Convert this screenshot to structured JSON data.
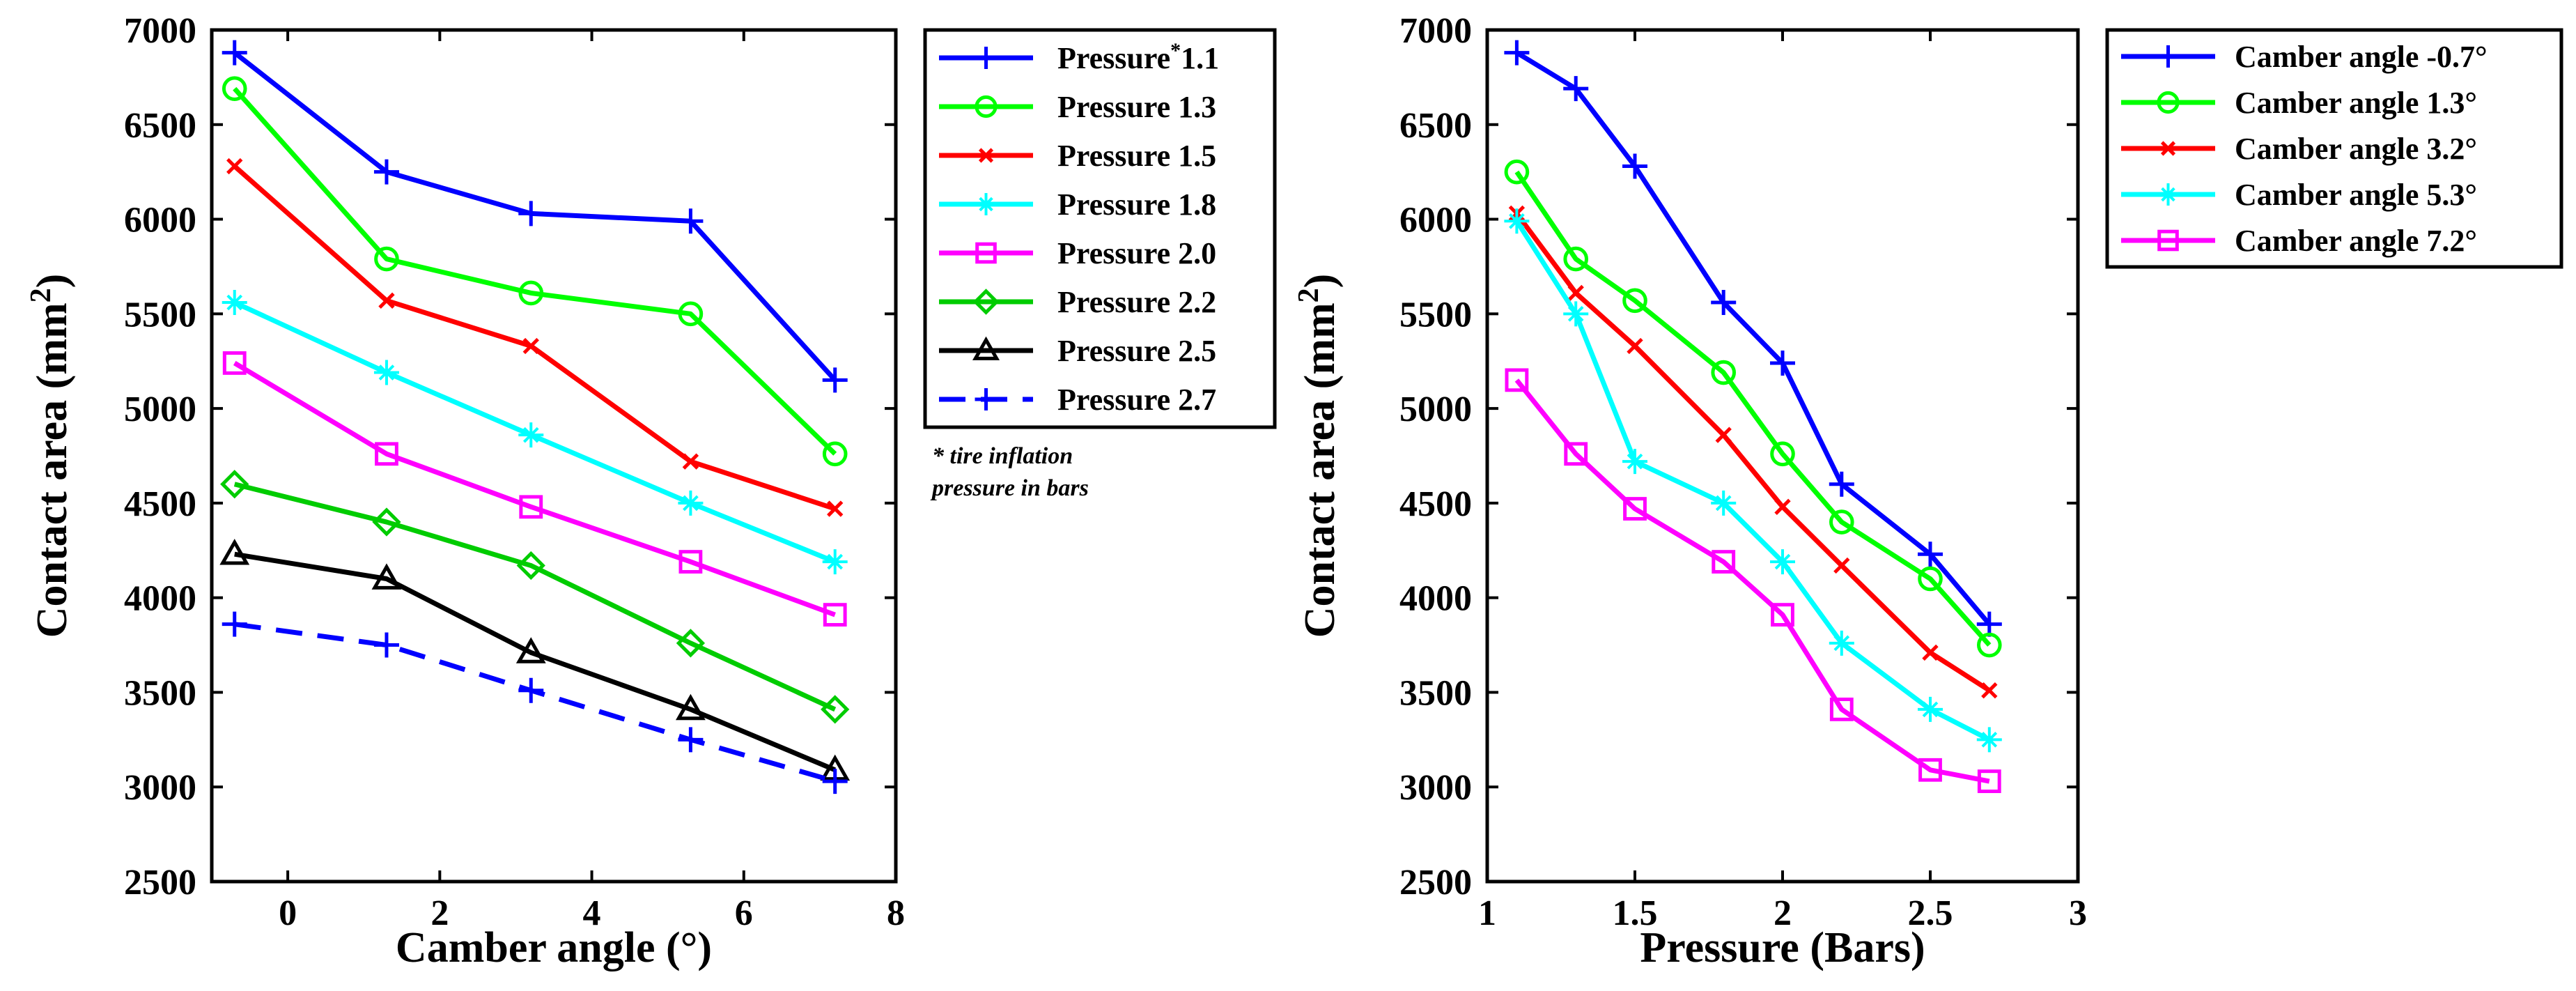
{
  "chart_data": [
    {
      "type": "line",
      "xlabel": "Camber angle (°)",
      "ylabel_prefix": "Contact area (mm",
      "ylabel_sup": "2",
      "ylabel_suffix": ")",
      "xlim": [
        -1,
        8
      ],
      "ylim": [
        2500,
        7000
      ],
      "xticks": [
        0,
        2,
        4,
        6,
        8
      ],
      "yticks": [
        2500,
        3000,
        3500,
        4000,
        4500,
        5000,
        5500,
        6000,
        6500,
        7000
      ],
      "x": [
        -0.7,
        1.3,
        3.2,
        5.3,
        7.2
      ],
      "legend_note": [
        "* tire inflation",
        "pressure in bars"
      ],
      "series": [
        {
          "name": "Pressure",
          "sup": "*",
          "name_tail": "1.1",
          "color": "#0000ff",
          "marker": "plus",
          "dash": false,
          "values": [
            6880,
            6250,
            6030,
            5990,
            5150
          ]
        },
        {
          "name": "Pressure 1.3",
          "color": "#00ff00",
          "marker": "circle",
          "dash": false,
          "values": [
            6690,
            5790,
            5610,
            5500,
            4760
          ]
        },
        {
          "name": "Pressure 1.5",
          "color": "#ff0000",
          "marker": "x",
          "dash": false,
          "values": [
            6280,
            5570,
            5330,
            4720,
            4470
          ]
        },
        {
          "name": "Pressure 1.8",
          "color": "#00ffff",
          "marker": "star",
          "dash": false,
          "values": [
            5560,
            5190,
            4860,
            4500,
            4190
          ]
        },
        {
          "name": "Pressure 2.0",
          "color": "#ff00ff",
          "marker": "square",
          "dash": false,
          "values": [
            5240,
            4760,
            4480,
            4190,
            3910
          ]
        },
        {
          "name": "Pressure 2.2",
          "color": "#00cc00",
          "marker": "diamond",
          "dash": false,
          "values": [
            4600,
            4400,
            4170,
            3760,
            3410
          ]
        },
        {
          "name": "Pressure 2.5",
          "color": "#000000",
          "marker": "triangle",
          "dash": false,
          "values": [
            4230,
            4100,
            3710,
            3410,
            3090
          ]
        },
        {
          "name": "Pressure 2.7",
          "color": "#0000ff",
          "marker": "plus",
          "dash": true,
          "values": [
            3860,
            3750,
            3510,
            3250,
            3030
          ]
        }
      ]
    },
    {
      "type": "line",
      "xlabel": "Pressure (Bars)",
      "ylabel_prefix": "Contact area (mm",
      "ylabel_sup": "2",
      "ylabel_suffix": ")",
      "xlim": [
        1,
        3
      ],
      "ylim": [
        2500,
        7000
      ],
      "xticks": [
        "1",
        "1.5",
        "2",
        "2.5",
        "3"
      ],
      "yticks": [
        2500,
        3000,
        3500,
        4000,
        4500,
        5000,
        5500,
        6000,
        6500,
        7000
      ],
      "x": [
        1.1,
        1.3,
        1.5,
        1.8,
        2.0,
        2.2,
        2.5,
        2.7
      ],
      "series": [
        {
          "name": "Camber angle -0.7°",
          "color": "#0000ff",
          "marker": "plus",
          "dash": false,
          "values": [
            6880,
            6690,
            6280,
            5560,
            5240,
            4600,
            4230,
            3860
          ]
        },
        {
          "name": "Camber angle 1.3°",
          "color": "#00ff00",
          "marker": "circle",
          "dash": false,
          "values": [
            6250,
            5790,
            5570,
            5190,
            4760,
            4400,
            4100,
            3750
          ]
        },
        {
          "name": "Camber angle 3.2°",
          "color": "#ff0000",
          "marker": "x",
          "dash": false,
          "values": [
            6030,
            5610,
            5330,
            4860,
            4480,
            4170,
            3710,
            3510
          ]
        },
        {
          "name": "Camber angle 5.3°",
          "color": "#00ffff",
          "marker": "star",
          "dash": false,
          "values": [
            5990,
            5500,
            4720,
            4500,
            4190,
            3760,
            3410,
            3250
          ]
        },
        {
          "name": "Camber angle 7.2°",
          "color": "#ff00ff",
          "marker": "square",
          "dash": false,
          "values": [
            5150,
            4760,
            4470,
            4190,
            3910,
            3410,
            3090,
            3030
          ]
        }
      ]
    }
  ]
}
